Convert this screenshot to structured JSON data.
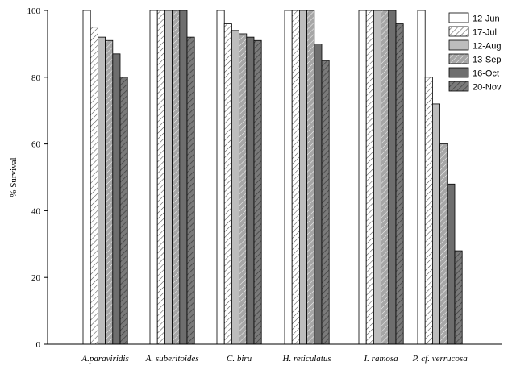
{
  "chart_data": {
    "type": "bar",
    "title": "",
    "xlabel": "",
    "ylabel": "% Survival",
    "ylim": [
      0,
      100
    ],
    "yticks": [
      0,
      20,
      40,
      60,
      80,
      100
    ],
    "categories": [
      "A.paraviridis",
      "A. suberitoides",
      "C. biru",
      "H. reticulatus",
      "I. ramosa",
      "P. cf. verrucosa"
    ],
    "series": [
      {
        "name": "12-Jun",
        "values": [
          100,
          100,
          100,
          100,
          100,
          100
        ],
        "fill": "#ffffff",
        "pattern": "none"
      },
      {
        "name": "17-Jul",
        "values": [
          95,
          100,
          96,
          100,
          100,
          80
        ],
        "fill": "#ffffff",
        "pattern": "hatch-light"
      },
      {
        "name": "12-Aug",
        "values": [
          92,
          100,
          94,
          100,
          100,
          72
        ],
        "fill": "#bdbdbd",
        "pattern": "none"
      },
      {
        "name": "13-Sep",
        "values": [
          91,
          100,
          93,
          100,
          100,
          60
        ],
        "fill": "#a6a6a6",
        "pattern": "hatch"
      },
      {
        "name": "16-Oct",
        "values": [
          87,
          100,
          92,
          90,
          100,
          48
        ],
        "fill": "#6e6e6e",
        "pattern": "none"
      },
      {
        "name": "20-Nov",
        "values": [
          80,
          92,
          91,
          85,
          96,
          28
        ],
        "fill": "#777777",
        "pattern": "hatch-dark"
      }
    ],
    "grid": false,
    "legend_position": "top-right"
  }
}
